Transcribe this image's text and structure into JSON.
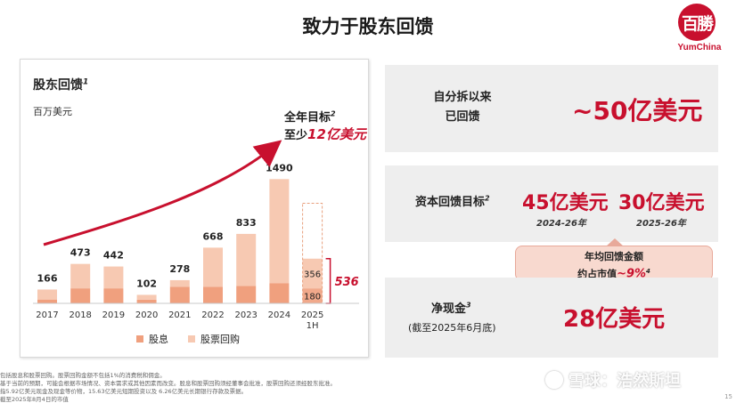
{
  "page": {
    "title": "致力于股东回馈",
    "logo_char": "百勝",
    "logo_brand": "YumChina",
    "page_number": "15"
  },
  "chart_panel": {
    "title": "股东回馈",
    "title_sup": "1",
    "unit": "百万美元",
    "target_line1": "全年目标",
    "target_sup": "2",
    "target_line2_prefix": "至少",
    "target_line2_value": "12亿美元",
    "bracket_total": "536",
    "legend_dividend": "股息",
    "legend_buyback": "股票回购"
  },
  "chart_data": {
    "type": "bar",
    "title": "股东回馈",
    "ylabel": "百万美元",
    "categories": [
      "2017",
      "2018",
      "2019",
      "2020",
      "2021",
      "2022",
      "2023",
      "2024",
      "2025"
    ],
    "category_sublabels": [
      "",
      "",
      "",
      "",
      "",
      "",
      "",
      "",
      "1H"
    ],
    "totals": [
      166,
      473,
      442,
      102,
      278,
      668,
      833,
      1490,
      536
    ],
    "series": [
      {
        "name": "股息",
        "values": [
          46,
          180,
          180,
          44,
          200,
          200,
          210,
          240,
          180
        ]
      },
      {
        "name": "股票回购",
        "values": [
          120,
          293,
          262,
          58,
          78,
          468,
          623,
          1250,
          356
        ]
      }
    ],
    "segment_labels_2025": {
      "dividend": "180",
      "buyback": "356"
    },
    "ylim": [
      0,
      1600
    ],
    "annotation": "全年目标 至少12亿美元",
    "colors": {
      "dividend": "#f0a07e",
      "buyback": "#f7c9b2",
      "arrow": "#c8102e"
    }
  },
  "right": {
    "box1_label_line1": "自分拆以来",
    "box1_label_line2": "已回馈",
    "box1_value": "~50亿美元",
    "box2_label": "资本回馈目标",
    "box2_sup": "2",
    "box2_value1": "45亿美元",
    "box2_sub1": "2024-26年",
    "box2_value2": "30亿美元",
    "box2_sub2": "2025-26年",
    "pill_line1": "年均回馈金额",
    "pill_line2_prefix": "约占市值",
    "pill_line2_value": "~9%",
    "pill_sup": "4",
    "box3_label": "净现金",
    "box3_sup": "3",
    "box3_sublabel": "(截至2025年6月底)",
    "box3_value": "28亿美元"
  },
  "footnotes": [
    "包括股息和股票回购。股票回购金额不包括1%的消费税和佣金。",
    "基于当前的预期，可能会根据市场情况、资本需求或其他因素而改变。股息和股票回购须经董事会批准，股票回购还须经股东批准。",
    "指5.92亿美元现金及现金等价物，15.63亿美元短期投资以及 6.26亿美元长期银行存款及票据。",
    "截至2025年8月4日的市值"
  ],
  "watermark": "雪球：浩然斯坦",
  "colors": {
    "accent": "#c8102e",
    "panel_bg": "#eeeeee",
    "pill_bg": "#f8d9cf"
  }
}
